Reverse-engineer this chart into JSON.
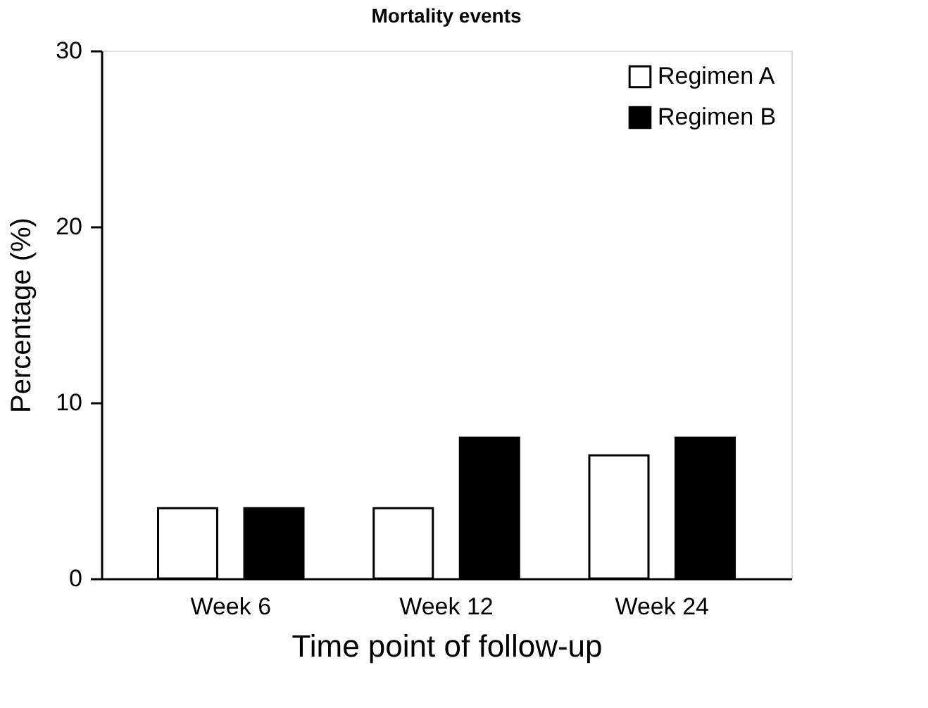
{
  "chart_data": {
    "type": "bar",
    "title": "Mortality events",
    "xlabel": "Time point of follow-up",
    "ylabel": "Percentage (%)",
    "categories": [
      "Week 6",
      "Week 12",
      "Week 24"
    ],
    "series": [
      {
        "name": "Regimen A",
        "color": "#ffffff",
        "values": [
          4,
          4,
          7
        ]
      },
      {
        "name": "Regimen B",
        "color": "#000000",
        "values": [
          4,
          8,
          8
        ]
      }
    ],
    "ylim": [
      0,
      30
    ],
    "yticks": [
      0,
      10,
      20,
      30
    ],
    "grid": false,
    "legend": "top right"
  }
}
